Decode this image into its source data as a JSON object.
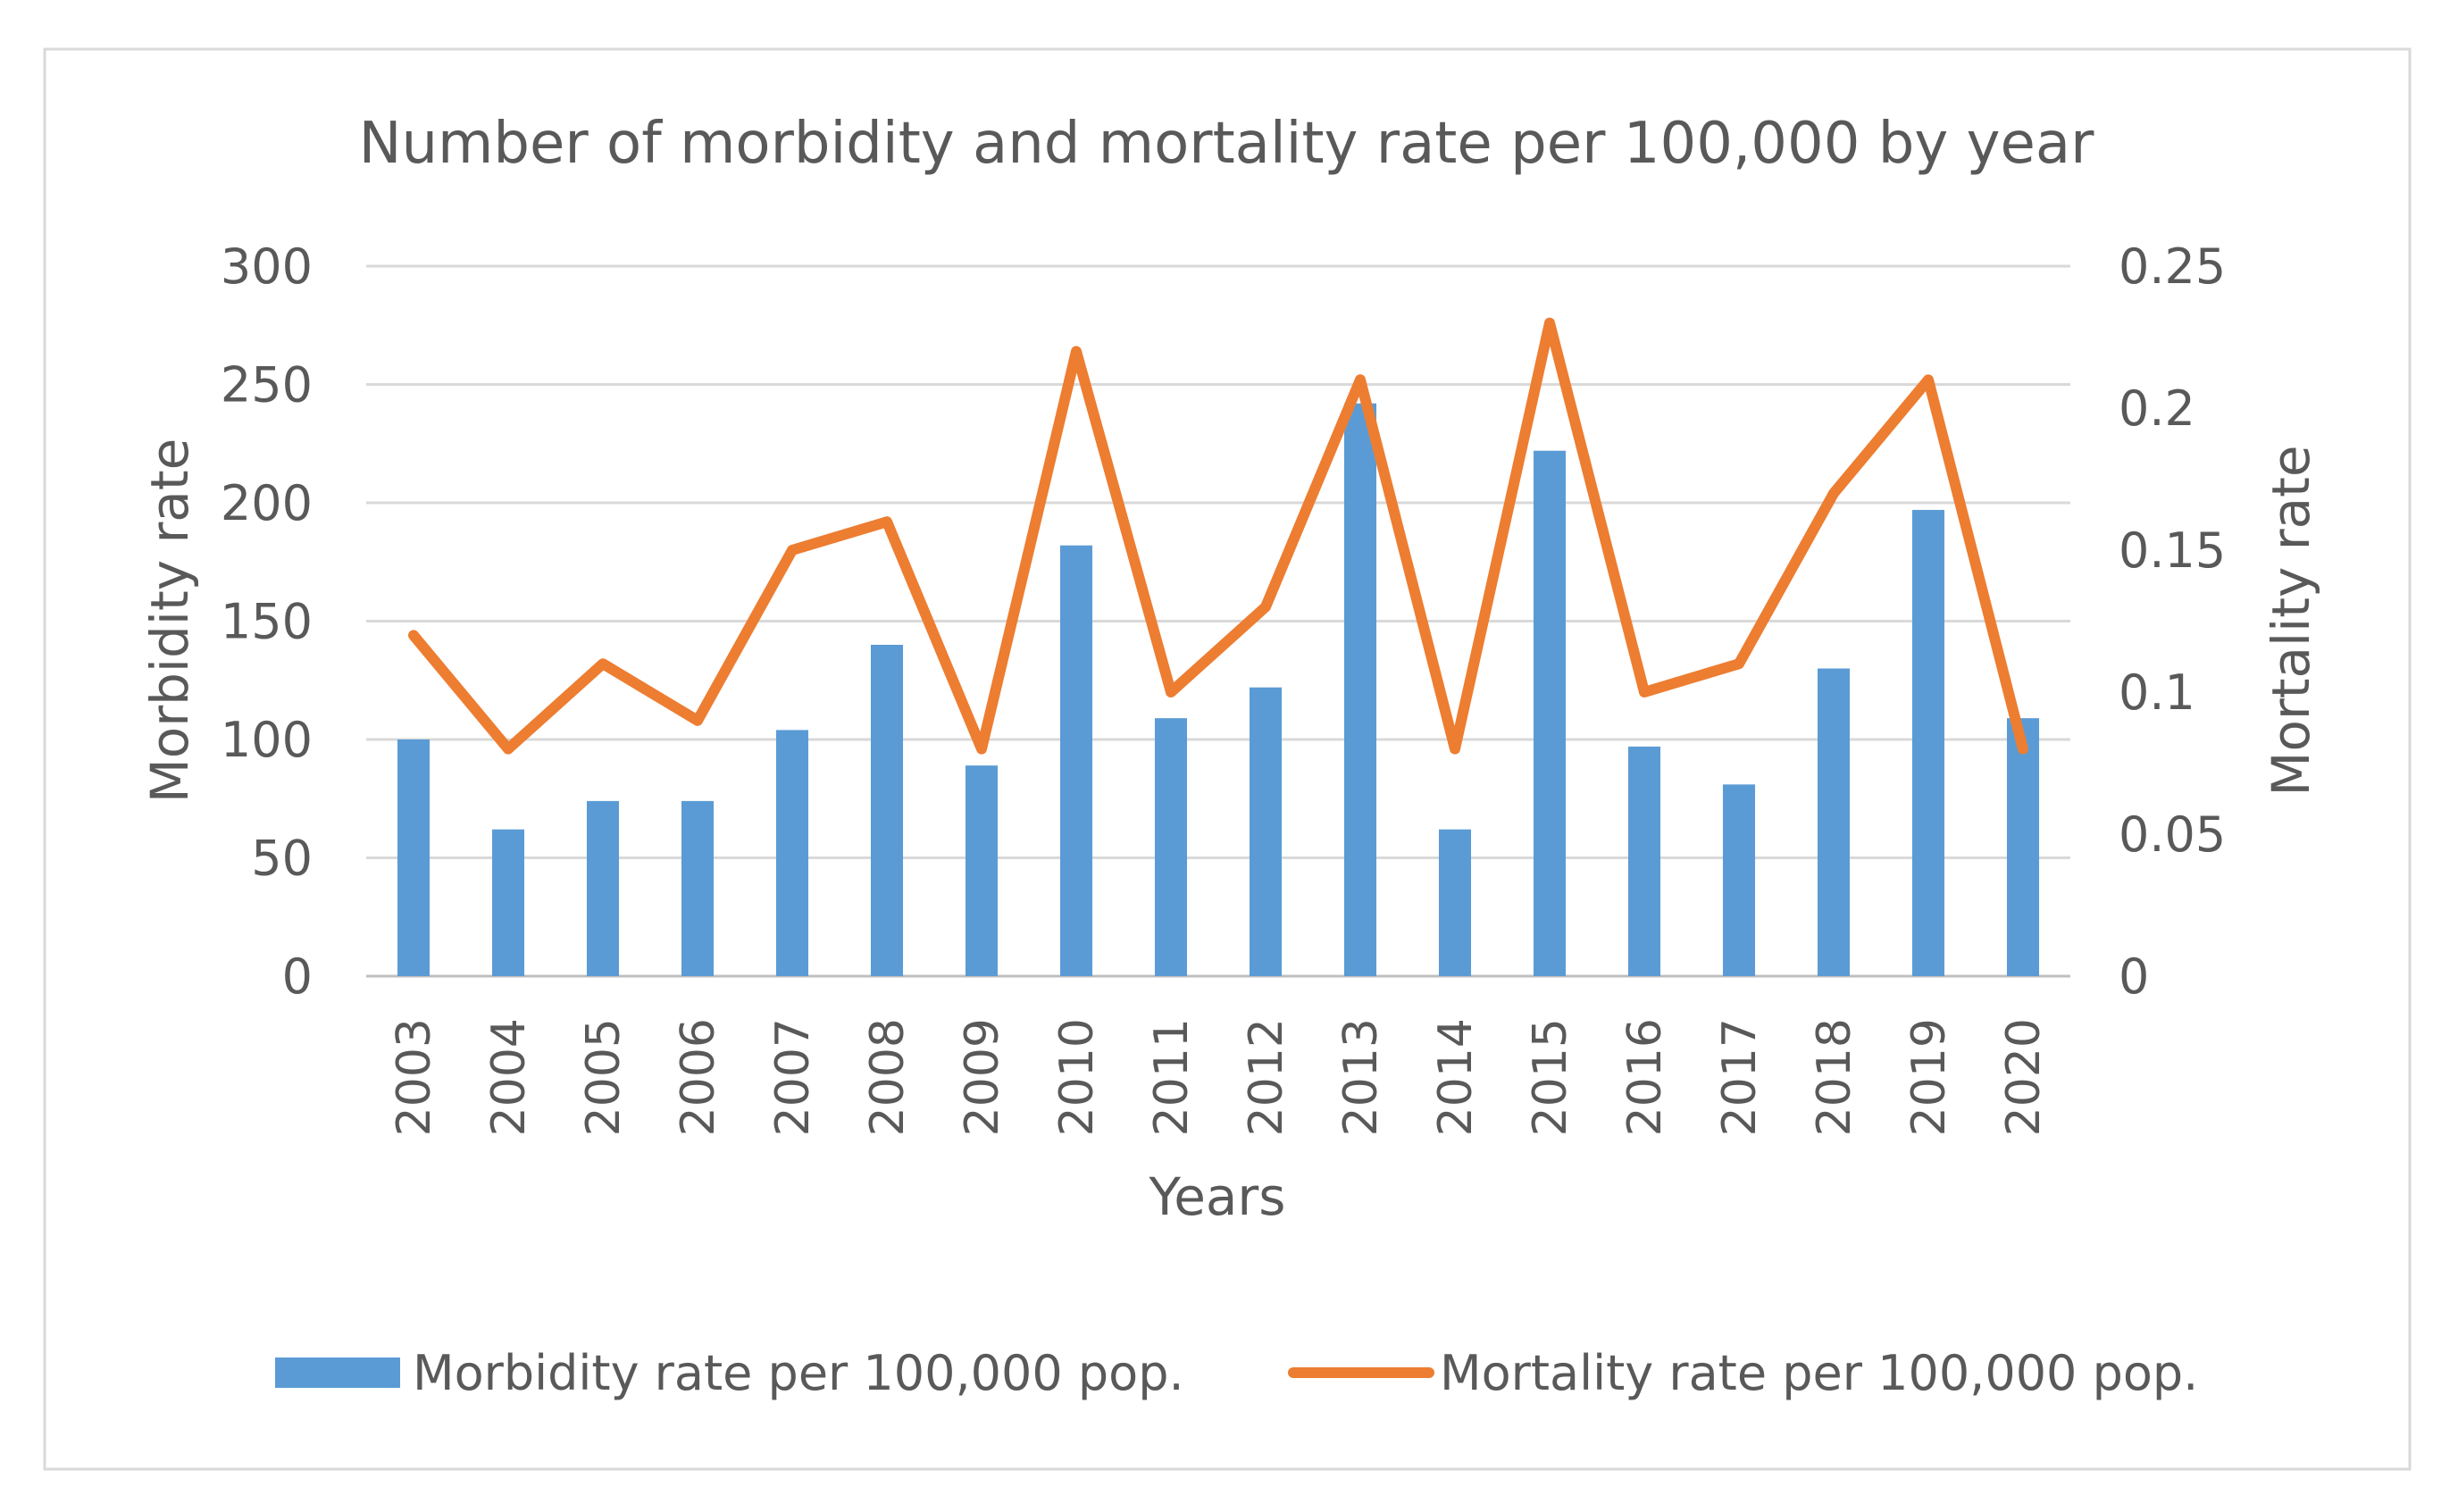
{
  "chart_data": {
    "type": "bar+line",
    "title": "Number of morbidity and mortality rate per 100,000 by year",
    "xlabel": "Years",
    "ylabel_left": "Morbidity rate",
    "ylabel_right": "Mortality rate",
    "categories": [
      "2003",
      "2004",
      "2005",
      "2006",
      "2007",
      "2008",
      "2009",
      "2010",
      "2011",
      "2012",
      "2013",
      "2014",
      "2015",
      "2016",
      "2017",
      "2018",
      "2019",
      "2020"
    ],
    "ylim_left": [
      0,
      300
    ],
    "yticks_left": [
      "0",
      "50",
      "100",
      "150",
      "200",
      "250",
      "300"
    ],
    "ylim_right": [
      0,
      0.25
    ],
    "yticks_right": [
      "0",
      "0.05",
      "0.1",
      "0.15",
      "0.2",
      "0.25"
    ],
    "grid": true,
    "legend_position": "bottom",
    "series": [
      {
        "name": "Morbidity rate per 100,000 pop.",
        "type": "bar",
        "axis": "left",
        "color": "#5B9BD5",
        "values": [
          100,
          62,
          74,
          74,
          104,
          140,
          89,
          182,
          109,
          122,
          242,
          62,
          222,
          97,
          81,
          130,
          197,
          109
        ]
      },
      {
        "name": "Mortality rate per 100,000 pop.",
        "type": "line",
        "axis": "right",
        "color": "#ED7D31",
        "values": [
          0.12,
          0.08,
          0.11,
          0.09,
          0.15,
          0.16,
          0.08,
          0.22,
          0.1,
          0.13,
          0.21,
          0.08,
          0.23,
          0.1,
          0.11,
          0.17,
          0.21,
          0.08
        ]
      }
    ]
  }
}
